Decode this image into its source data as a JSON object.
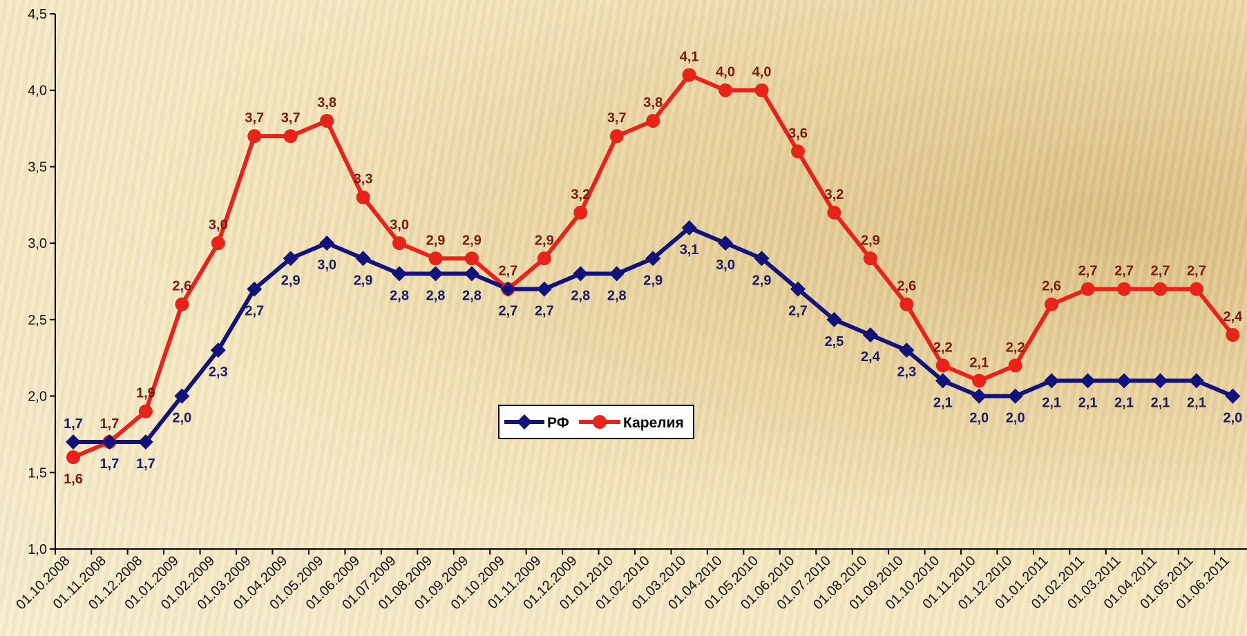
{
  "chart_data": {
    "type": "line",
    "x": [
      "01.10.2008",
      "01.11.2008",
      "01.12.2008",
      "01.01.2009",
      "01.02.2009",
      "01.03.2009",
      "01.04.2009",
      "01.05.2009",
      "01.06.2009",
      "01.07.2009",
      "01.08.2009",
      "01.09.2009",
      "01.10.2009",
      "01.11.2009",
      "01.12.2009",
      "01.01.2010",
      "01.02.2010",
      "01.03.2010",
      "01.04.2010",
      "01.05.2010",
      "01.06.2010",
      "01.07.2010",
      "01.08.2010",
      "01.09.2010",
      "01.10.2010",
      "01.11.2010",
      "01.12.2010",
      "01.01.2011",
      "01.02.2011",
      "01.03.2011",
      "01.04.2011",
      "01.05.2011",
      "01.06.2011"
    ],
    "series": [
      {
        "name": "РФ",
        "color": "#12127a",
        "marker": "diamond",
        "values": [
          1.7,
          1.7,
          1.7,
          2.0,
          2.3,
          2.7,
          2.9,
          3.0,
          2.9,
          2.8,
          2.8,
          2.8,
          2.7,
          2.7,
          2.8,
          2.8,
          2.9,
          3.1,
          3.0,
          2.9,
          2.7,
          2.5,
          2.4,
          2.3,
          2.1,
          2.0,
          2.0,
          2.1,
          2.1,
          2.1,
          2.1,
          2.1,
          2.0
        ],
        "labels": [
          "1,7",
          "1,7",
          "1,7",
          "2,0",
          "2,3",
          "2,7",
          "2,9",
          "3,0",
          "2,9",
          "2,8",
          "2,8",
          "2,8",
          "2,7",
          "2,7",
          "2,8",
          "2,8",
          "2,9",
          "3,1",
          "3,0",
          "2,9",
          "2,7",
          "2,5",
          "2,4",
          "2,3",
          "2,1",
          "2,0",
          "2,0",
          "2,1",
          "2,1",
          "2,1",
          "2,1",
          "2,1",
          "2,0"
        ]
      },
      {
        "name": "Карелия",
        "color": "#e8231a",
        "marker": "circle",
        "values": [
          1.6,
          1.7,
          1.9,
          2.6,
          3.0,
          3.7,
          3.7,
          3.8,
          3.3,
          3.0,
          2.9,
          2.9,
          2.7,
          2.9,
          3.2,
          3.7,
          3.8,
          4.1,
          4.0,
          4.0,
          3.6,
          3.2,
          2.9,
          2.6,
          2.2,
          2.1,
          2.2,
          2.6,
          2.7,
          2.7,
          2.7,
          2.7,
          2.4
        ],
        "labels": [
          "1,6",
          "1,7",
          "1,9",
          "2,6",
          "3,0",
          "3,7",
          "3,7",
          "3,8",
          "3,3",
          "3,0",
          "2,9",
          "2,9",
          "2,7",
          "2,9",
          "3,2",
          "3,7",
          "3,8",
          "4,1",
          "4,0",
          "4,0",
          "3,6",
          "3,2",
          "2,9",
          "2,6",
          "2,2",
          "2,1",
          "2,2",
          "2,6",
          "2,7",
          "2,7",
          "2,7",
          "2,7",
          "2,4"
        ]
      }
    ],
    "yticks": [
      "1,0",
      "1,5",
      "2,0",
      "2,5",
      "3,0",
      "3,5",
      "4,0",
      "4,5"
    ],
    "ylim": [
      1.0,
      4.5
    ],
    "title": "",
    "xlabel": "",
    "ylabel": "",
    "grid": false,
    "legend": "center"
  }
}
